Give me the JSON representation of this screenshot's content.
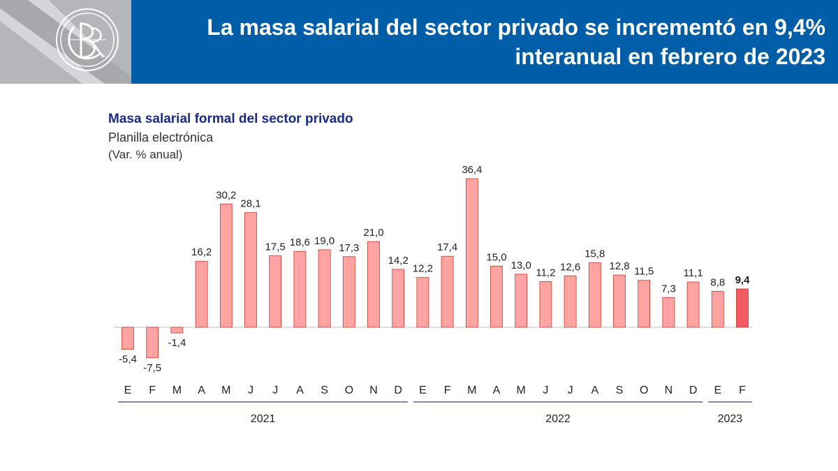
{
  "header": {
    "title_line1": "La masa salarial del sector privado se incrementó en 9,4%",
    "title_line2": "interanual en febrero de 2023",
    "logo_icon": "bcrp-monogram-icon"
  },
  "colors": {
    "header_blue": "#005ea8",
    "header_gray": "#b5b6ba",
    "bar": "#ffa3a3",
    "bar_highlight": "#f25b61",
    "bar_stroke": "#c0392b",
    "year_line": "#3b3b8c"
  },
  "chart_data": {
    "type": "bar",
    "title": "Masa salarial formal del sector privado",
    "subtitle": "Planilla electrónica",
    "ylabel": "(Var. % anual)",
    "categories": [
      "E",
      "F",
      "M",
      "A",
      "M",
      "J",
      "J",
      "A",
      "S",
      "O",
      "N",
      "D",
      "E",
      "F",
      "M",
      "A",
      "M",
      "J",
      "J",
      "A",
      "S",
      "O",
      "N",
      "D",
      "E",
      "F"
    ],
    "values": [
      -5.4,
      -7.5,
      -1.4,
      16.2,
      30.2,
      28.1,
      17.5,
      18.6,
      19.0,
      17.3,
      21.0,
      14.2,
      12.2,
      17.4,
      36.4,
      15.0,
      13.0,
      11.2,
      12.6,
      15.8,
      12.8,
      11.5,
      7.3,
      11.1,
      8.8,
      9.4
    ],
    "value_labels": [
      "-5,4",
      "-7,5",
      "-1,4",
      "16,2",
      "30,2",
      "28,1",
      "17,5",
      "18,6",
      "19,0",
      "17,3",
      "21,0",
      "14,2",
      "12,2",
      "17,4",
      "36,4",
      "15,0",
      "13,0",
      "11,2",
      "12,6",
      "15,8",
      "12,8",
      "11,5",
      "7,3",
      "11,1",
      "8,8",
      "9,4"
    ],
    "years": [
      {
        "label": "2021",
        "start": 0,
        "end": 11
      },
      {
        "label": "2022",
        "start": 12,
        "end": 23
      },
      {
        "label": "2023",
        "start": 24,
        "end": 25
      }
    ],
    "highlight_index": 25,
    "grid": false,
    "legend": "none"
  }
}
